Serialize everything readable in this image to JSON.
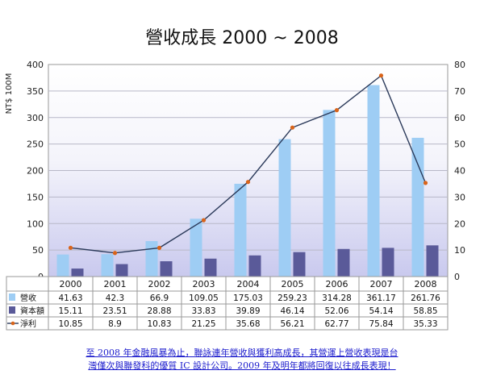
{
  "chart_data": {
    "type": "bar",
    "title": "營收成長 2000 ~ 2008",
    "ylabel": "NT$ 100M",
    "categories": [
      "2000",
      "2001",
      "2002",
      "2003",
      "2004",
      "2005",
      "2006",
      "2007",
      "2008"
    ],
    "ylim": [
      0,
      400
    ],
    "y2lim": [
      0,
      80
    ],
    "yticks": [
      "0",
      "50",
      "100",
      "150",
      "200",
      "250",
      "300",
      "350",
      "400"
    ],
    "y2ticks": [
      "0",
      "10",
      "20",
      "30",
      "40",
      "50",
      "60",
      "70",
      "80"
    ],
    "series": [
      {
        "name": "營收",
        "type": "bar",
        "axis": "left",
        "color": "#9ecdf4",
        "values": [
          41.63,
          42.3,
          66.9,
          109.05,
          175.03,
          259.23,
          314.28,
          361.17,
          261.76
        ],
        "labels": [
          "41.63",
          "42.3",
          "66.9",
          "109.05",
          "175.03",
          "259.23",
          "314.28",
          "361.17",
          "261.76"
        ]
      },
      {
        "name": "資本額",
        "type": "bar",
        "axis": "left",
        "color": "#5a5a99",
        "values": [
          15.11,
          23.51,
          28.88,
          33.83,
          39.89,
          46.14,
          52.06,
          54.14,
          58.85
        ],
        "labels": [
          "15.11",
          "23.51",
          "28.88",
          "33.83",
          "39.89",
          "46.14",
          "52.06",
          "54.14",
          "58.85"
        ]
      },
      {
        "name": "淨利",
        "type": "line",
        "axis": "right",
        "color": "#2b3a5a",
        "marker_color": "#d9641a",
        "values": [
          10.85,
          8.9,
          10.83,
          21.25,
          35.68,
          56.21,
          62.77,
          75.84,
          35.33
        ],
        "labels": [
          "10.85",
          "8.9",
          "10.83",
          "21.25",
          "35.68",
          "56.21",
          "62.77",
          "75.84",
          "35.33"
        ]
      }
    ],
    "grid": true,
    "legend": "table-below"
  },
  "caption": {
    "line1": "至 2008 年金融風暴為止，聯詠連年營收與獲利高成長，其營運上營收表現是台",
    "line2": "灣僅次與聯發科的優質 IC 設計公司。2009 年及明年都將回復以往成長表現！"
  }
}
